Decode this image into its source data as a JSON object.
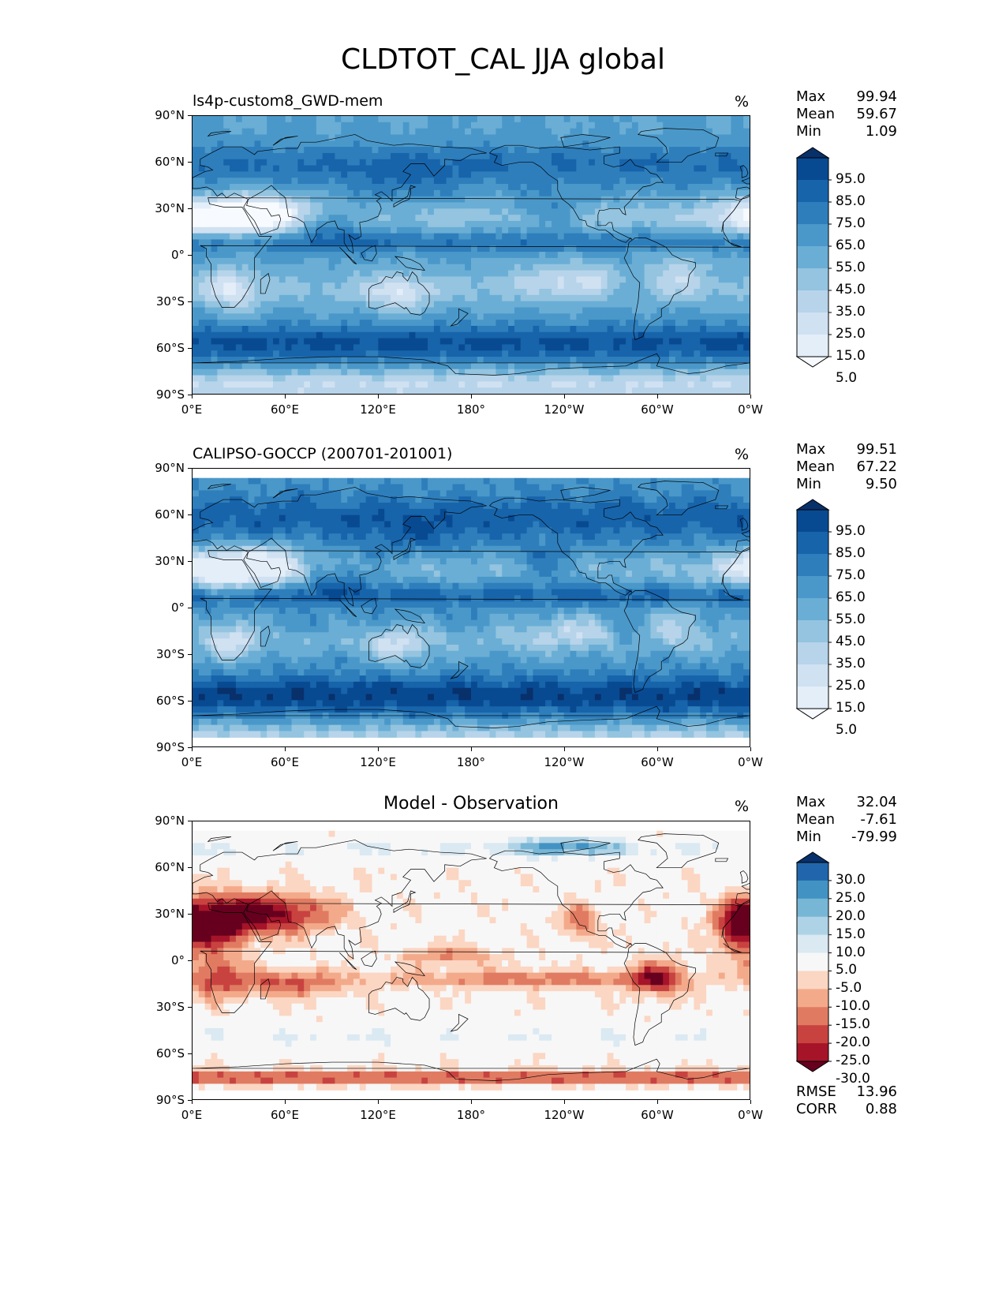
{
  "title": "CLDTOT_CAL JJA global",
  "unit": "%",
  "lat_labels": [
    "90°N",
    "60°N",
    "30°N",
    "0°",
    "30°S",
    "60°S",
    "90°S"
  ],
  "lon_labels": [
    "0°E",
    "60°E",
    "120°E",
    "180°",
    "120°W",
    "60°W",
    "0°W"
  ],
  "colors": {
    "blues": [
      "#f7fbff",
      "#e3eef9",
      "#d0e1f2",
      "#b7d4ea",
      "#94c4df",
      "#6aaed6",
      "#4a98c9",
      "#2e7ebc",
      "#1764ab",
      "#084a91",
      "#08306b"
    ],
    "rdbu": [
      "#67001f",
      "#a51429",
      "#c84340",
      "#e07b62",
      "#f3aa8b",
      "#fbd6c3",
      "#f7f7f7",
      "#dae9f2",
      "#aed3e6",
      "#78b6d6",
      "#4293c3",
      "#2166ac",
      "#08306b"
    ],
    "coast": "#000000"
  },
  "panels": [
    {
      "name": "test",
      "title": "ls4p-custom8_GWD-mem",
      "stats": [
        {
          "label": "Max",
          "value": "99.94"
        },
        {
          "label": "Mean",
          "value": "59.67"
        },
        {
          "label": "Min",
          "value": "1.09"
        }
      ],
      "colorbar_ticks": [
        "95.0",
        "85.0",
        "75.0",
        "65.0",
        "55.0",
        "45.0",
        "35.0",
        "25.0",
        "15.0",
        "5.0"
      ]
    },
    {
      "name": "reference",
      "title": "CALIPSO-GOCCP (200701-201001)",
      "stats": [
        {
          "label": "Max",
          "value": "99.51"
        },
        {
          "label": "Mean",
          "value": "67.22"
        },
        {
          "label": "Min",
          "value": "9.50"
        }
      ],
      "colorbar_ticks": [
        "95.0",
        "85.0",
        "75.0",
        "65.0",
        "55.0",
        "45.0",
        "35.0",
        "25.0",
        "15.0",
        "5.0"
      ]
    },
    {
      "name": "difference",
      "title": "Model - Observation",
      "stats": [
        {
          "label": "Max",
          "value": "32.04"
        },
        {
          "label": "Mean",
          "value": "-7.61"
        },
        {
          "label": "Min",
          "value": "-79.99"
        }
      ],
      "colorbar_ticks": [
        "30.0",
        "25.0",
        "20.0",
        "15.0",
        "10.0",
        "5.0",
        "-5.0",
        "-10.0",
        "-15.0",
        "-20.0",
        "-25.0",
        "-30.0"
      ],
      "metrics": [
        {
          "label": "RMSE",
          "value": "13.96"
        },
        {
          "label": "CORR",
          "value": "0.88"
        }
      ]
    }
  ],
  "chart_data": [
    {
      "type": "heatmap",
      "title": "ls4p-custom8_GWD-mem",
      "variable": "CLDTOT_CAL",
      "season": "JJA",
      "units": "%",
      "x_range": [
        0,
        360
      ],
      "y_range": [
        -90,
        90
      ],
      "levels": [
        5,
        15,
        25,
        35,
        45,
        55,
        65,
        75,
        85,
        95
      ],
      "max": 99.94,
      "mean": 59.67,
      "min": 1.09
    },
    {
      "type": "heatmap",
      "title": "CALIPSO-GOCCP (200701-201001)",
      "variable": "CLDTOT_CAL",
      "season": "JJA",
      "units": "%",
      "x_range": [
        0,
        360
      ],
      "y_range": [
        -90,
        90
      ],
      "levels": [
        5,
        15,
        25,
        35,
        45,
        55,
        65,
        75,
        85,
        95
      ],
      "max": 99.51,
      "mean": 67.22,
      "min": 9.5
    },
    {
      "type": "heatmap",
      "title": "Model - Observation",
      "variable": "CLDTOT_CAL",
      "season": "JJA",
      "units": "%",
      "x_range": [
        0,
        360
      ],
      "y_range": [
        -90,
        90
      ],
      "levels": [
        -30,
        -25,
        -20,
        -15,
        -10,
        -5,
        5,
        10,
        15,
        20,
        25,
        30
      ],
      "max": 32.04,
      "mean": -7.61,
      "min": -79.99,
      "rmse": 13.96,
      "corr": 0.88
    }
  ]
}
